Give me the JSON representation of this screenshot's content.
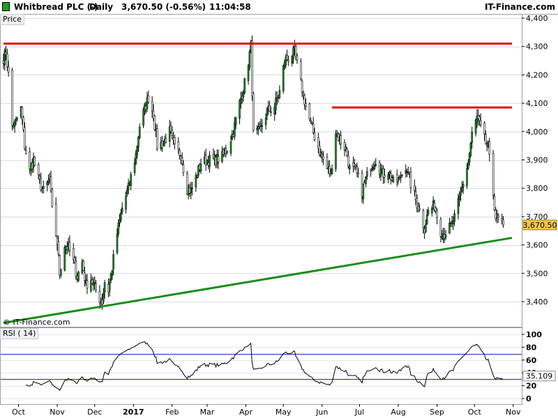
{
  "header": {
    "instrument": "Whitbread PLC (-)",
    "period": "Daily",
    "price_change": "3,670.50 (-0.56%)",
    "time": "11:04:58",
    "brand": "IT-Finance.com"
  },
  "watermark": "© IT-Finance.com",
  "colors": {
    "bull_body": "#1f9d24",
    "bear_body": "#ffffff",
    "wick": "#000000",
    "resistance": "#e01010",
    "support": "#1a8c1a",
    "rsi_line": "#000000",
    "rsi_band": "#1f2a9b",
    "price_label_bg": "#f4c842"
  },
  "chart_data": [
    {
      "type": "candlestick",
      "panel_label": "Price",
      "ylim": [
        3320,
        4420
      ],
      "y_ticks": [
        3400,
        3500,
        3600,
        3700,
        3800,
        3900,
        4000,
        4100,
        4200,
        4300,
        4400
      ],
      "y_tick_labels": [
        "3,400",
        "3,500",
        "3,600",
        "3,700",
        "3,800",
        "3,900",
        "4,000",
        "4,100",
        "4,200",
        "4,300",
        "4,400"
      ],
      "x_labels": [
        "Oct",
        "Nov",
        "Dec",
        "2017",
        "Feb",
        "Mar",
        "Apr",
        "May",
        "Jun",
        "Jul",
        "Aug",
        "Sep",
        "Oct",
        "Nov"
      ],
      "last_price_label": "3,670.50",
      "last_price": 3670.5,
      "anchors": [
        [
          "2016-09-19",
          4260
        ],
        [
          "2016-09-21",
          4280
        ],
        [
          "2016-09-23",
          4200
        ],
        [
          "2016-09-26",
          4020
        ],
        [
          "2016-09-29",
          4030
        ],
        [
          "2016-10-03",
          4080
        ],
        [
          "2016-10-06",
          3950
        ],
        [
          "2016-10-10",
          3860
        ],
        [
          "2016-10-13",
          3900
        ],
        [
          "2016-10-17",
          3830
        ],
        [
          "2016-10-21",
          3790
        ],
        [
          "2016-10-26",
          3830
        ],
        [
          "2016-10-28",
          3720
        ],
        [
          "2016-11-01",
          3610
        ],
        [
          "2016-11-03",
          3500
        ],
        [
          "2016-11-07",
          3600
        ],
        [
          "2016-11-10",
          3590
        ],
        [
          "2016-11-14",
          3540
        ],
        [
          "2016-11-17",
          3490
        ],
        [
          "2016-11-21",
          3540
        ],
        [
          "2016-11-24",
          3460
        ],
        [
          "2016-11-28",
          3480
        ],
        [
          "2016-12-01",
          3450
        ],
        [
          "2016-12-05",
          3410
        ],
        [
          "2016-12-07",
          3400
        ],
        [
          "2016-12-09",
          3470
        ],
        [
          "2016-12-12",
          3440
        ],
        [
          "2016-12-15",
          3520
        ],
        [
          "2016-12-19",
          3640
        ],
        [
          "2016-12-23",
          3730
        ],
        [
          "2016-12-28",
          3800
        ],
        [
          "2017-01-03",
          3920
        ],
        [
          "2017-01-06",
          4020
        ],
        [
          "2017-01-10",
          4080
        ],
        [
          "2017-01-13",
          4120
        ],
        [
          "2017-01-17",
          4060
        ],
        [
          "2017-01-20",
          3950
        ],
        [
          "2017-01-25",
          3960
        ],
        [
          "2017-01-30",
          4000
        ],
        [
          "2017-02-03",
          3940
        ],
        [
          "2017-02-08",
          3920
        ],
        [
          "2017-02-13",
          3800
        ],
        [
          "2017-02-16",
          3790
        ],
        [
          "2017-02-21",
          3850
        ],
        [
          "2017-02-24",
          3890
        ],
        [
          "2017-03-02",
          3900
        ],
        [
          "2017-03-07",
          3900
        ],
        [
          "2017-03-13",
          3910
        ],
        [
          "2017-03-17",
          3940
        ],
        [
          "2017-03-22",
          4000
        ],
        [
          "2017-03-27",
          4100
        ],
        [
          "2017-03-31",
          4170
        ],
        [
          "2017-04-05",
          4300
        ],
        [
          "2017-04-07",
          3990
        ],
        [
          "2017-04-12",
          4000
        ],
        [
          "2017-04-18",
          4070
        ],
        [
          "2017-04-24",
          4090
        ],
        [
          "2017-04-28",
          4140
        ],
        [
          "2017-05-02",
          4250
        ],
        [
          "2017-05-05",
          4260
        ],
        [
          "2017-05-10",
          4280
        ],
        [
          "2017-05-15",
          4170
        ],
        [
          "2017-05-19",
          4090
        ],
        [
          "2017-05-24",
          4010
        ],
        [
          "2017-05-30",
          3930
        ],
        [
          "2017-06-05",
          3870
        ],
        [
          "2017-06-08",
          3850
        ],
        [
          "2017-06-12",
          4000
        ],
        [
          "2017-06-15",
          3970
        ],
        [
          "2017-06-20",
          3940
        ],
        [
          "2017-06-23",
          3870
        ],
        [
          "2017-06-28",
          3860
        ],
        [
          "2017-07-03",
          3790
        ],
        [
          "2017-07-06",
          3830
        ],
        [
          "2017-07-10",
          3880
        ],
        [
          "2017-07-14",
          3900
        ],
        [
          "2017-07-19",
          3850
        ],
        [
          "2017-07-24",
          3860
        ],
        [
          "2017-07-28",
          3820
        ],
        [
          "2017-08-02",
          3830
        ],
        [
          "2017-08-07",
          3880
        ],
        [
          "2017-08-10",
          3830
        ],
        [
          "2017-08-15",
          3760
        ],
        [
          "2017-08-18",
          3720
        ],
        [
          "2017-08-22",
          3660
        ],
        [
          "2017-08-25",
          3720
        ],
        [
          "2017-08-30",
          3740
        ],
        [
          "2017-09-04",
          3650
        ],
        [
          "2017-09-07",
          3640
        ],
        [
          "2017-09-11",
          3660
        ],
        [
          "2017-09-14",
          3680
        ],
        [
          "2017-09-19",
          3760
        ],
        [
          "2017-09-22",
          3820
        ],
        [
          "2017-09-26",
          3890
        ],
        [
          "2017-09-29",
          3990
        ],
        [
          "2017-10-03",
          4050
        ],
        [
          "2017-10-06",
          4010
        ],
        [
          "2017-10-10",
          3960
        ],
        [
          "2017-10-12",
          3940
        ],
        [
          "2017-10-16",
          3780
        ],
        [
          "2017-10-18",
          3700
        ],
        [
          "2017-10-20",
          3690
        ],
        [
          "2017-10-24",
          3670.5
        ]
      ],
      "lines": [
        {
          "name": "resistance-upper",
          "from": [
            "2016-09-19",
            4310
          ],
          "to": [
            "2017-10-31",
            4310
          ],
          "color": "#e01010"
        },
        {
          "name": "resistance-lower",
          "from": [
            "2017-06-09",
            4085
          ],
          "to": [
            "2017-10-31",
            4085
          ],
          "color": "#e01010"
        },
        {
          "name": "support-trendline",
          "from": [
            "2016-09-19",
            3325
          ],
          "to": [
            "2017-10-31",
            3625
          ],
          "color": "#1a8c1a"
        }
      ]
    },
    {
      "type": "line",
      "panel_label": "RSI ( 14)",
      "ylim": [
        0,
        100
      ],
      "y_ticks": [
        0,
        20,
        40,
        60,
        80,
        100
      ],
      "y_tick_labels": [
        "0",
        "20",
        "40",
        "60",
        "80",
        "100"
      ],
      "bands": [
        30,
        70
      ],
      "last_value_label": "35.109",
      "last_value": 35.109
    }
  ]
}
